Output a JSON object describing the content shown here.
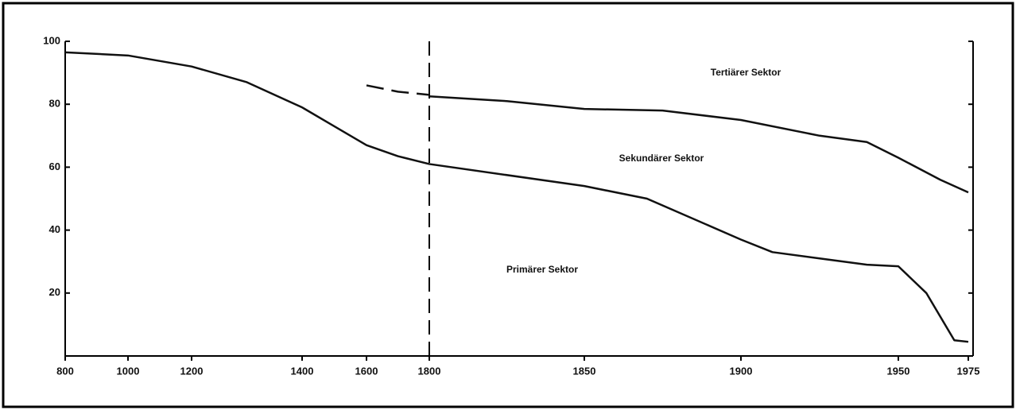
{
  "chart_data": {
    "type": "line",
    "annotations": [
      "Tertiärer Sektor",
      "Sekundärer Sektor",
      "Primärer Sektor"
    ],
    "xlim": [
      800,
      1975
    ],
    "ylim": [
      0,
      100
    ],
    "xticks": [
      800,
      1000,
      1200,
      1400,
      1600,
      1800,
      1850,
      1900,
      1950,
      1975
    ],
    "yticks": [
      20,
      40,
      60,
      80,
      100
    ],
    "vline": 1800,
    "series": [
      {
        "color": "#111111",
        "dashed": false,
        "x": [
          800,
          1000,
          1200,
          1300,
          1400,
          1500,
          1600,
          1700,
          1800,
          1850,
          1870,
          1900,
          1910,
          1925,
          1940,
          1950,
          1960,
          1970,
          1975
        ],
        "values": [
          96.5,
          95.5,
          92,
          87,
          79,
          73,
          67,
          63.5,
          61,
          54,
          50,
          37,
          33,
          31,
          29,
          28.5,
          20,
          5,
          4.5
        ]
      },
      {
        "color": "#111111",
        "dashed": true,
        "x": [
          1600,
          1700,
          1800
        ],
        "values": [
          86,
          84,
          83
        ]
      },
      {
        "color": "#111111",
        "dashed": false,
        "x": [
          1800,
          1825,
          1850,
          1875,
          1900,
          1925,
          1940,
          1950,
          1965,
          1975
        ],
        "values": [
          82.5,
          81,
          78.5,
          78,
          75,
          70,
          68,
          63,
          56,
          52
        ]
      }
    ]
  }
}
